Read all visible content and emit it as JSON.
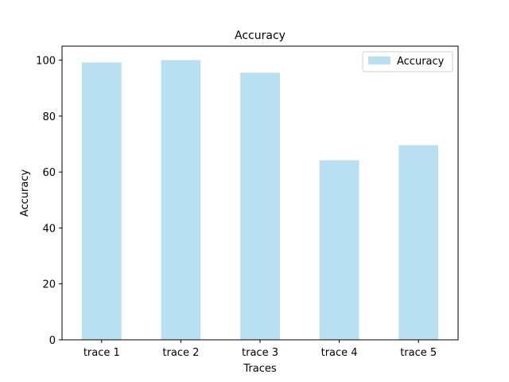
{
  "chart_data": {
    "type": "bar",
    "title": "Accuracy",
    "xlabel": "Traces",
    "ylabel": "Accuracy",
    "categories": [
      "trace 1",
      "trace 2",
      "trace 3",
      "trace 4",
      "trace 5"
    ],
    "series": [
      {
        "name": "Accuracy",
        "values": [
          99.2,
          100.0,
          95.5,
          64.2,
          69.6
        ],
        "color": "#b8e0f2"
      }
    ],
    "ylim": [
      0,
      105
    ],
    "yticks": [
      0,
      20,
      40,
      60,
      80,
      100
    ],
    "grid": false,
    "legend": {
      "position": "top-right"
    }
  }
}
